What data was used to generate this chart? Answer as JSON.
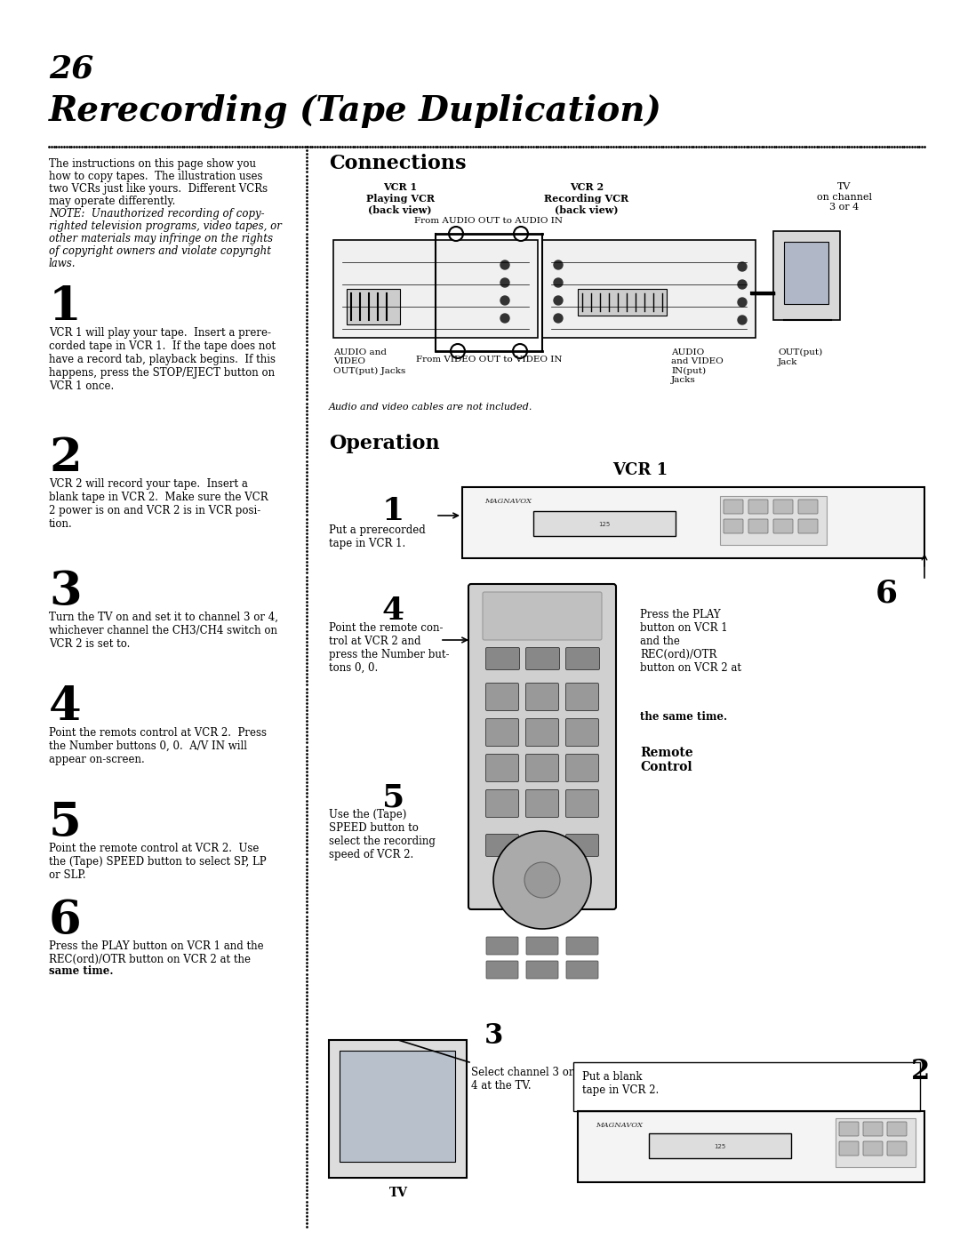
{
  "bg_color": "#ffffff",
  "page_number": "26",
  "title": "Rerecording (Tape Duplication)",
  "intro_text_line1": "The instructions on this page show you",
  "intro_text_line2": "how to copy tapes.  The illustration uses",
  "intro_text_line3": "two VCRs just like yours.  Different VCRs",
  "intro_text_line4": "may operate differently.",
  "intro_note1": "NOTE:  Unauthorized recording of copy-",
  "intro_note2": "righted television programs, video tapes, or",
  "intro_note3": "other materials may infringe on the rights",
  "intro_note4": "of copyright owners and violate copyright",
  "intro_note5": "laws.",
  "step1_num": "1",
  "step1_text": "VCR 1 will play your tape.  Insert a prere-\ncorded tape in VCR 1.  If the tape does not\nhave a record tab, playback begins.  If this\nhappens, press the STOP/EJECT button on\nVCR 1 once.",
  "step2_num": "2",
  "step2_text": "VCR 2 will record your tape.  Insert a\nblank tape in VCR 2.  Make sure the VCR\n2 power is on and VCR 2 is in VCR posi-\ntion.",
  "step3_num": "3",
  "step3_text": "Turn the TV on and set it to channel 3 or 4,\nwhichever channel the CH3/CH4 switch on\nVCR 2 is set to.",
  "step4_num": "4",
  "step4_text": "Point the remotѕ control at VCR 2.  Press\nthe Number buttons 0, 0.  A/V IN will\nappear on-screen.",
  "step5_num": "5",
  "step5_text": "Point the remote control at VCR 2.  Use\nthe (Tape) SPEED button to select SP, LP\nor SLP.",
  "step6_num": "6",
  "step6_text": "Press the PLAY button on VCR 1 and the\nREC(ord)/OTR button on VCR 2 at the",
  "step6_bold": "same time.",
  "connections_title": "Connections",
  "conn_vcr1_label": "VCR 1\nPlaying VCR\n(back view)",
  "conn_vcr2_label": "VCR 2\nRecording VCR\n(back view)",
  "conn_tv_label": "TV\non channel\n3 or 4",
  "conn_audio_label": "From AUDIO OUT to AUDIO IN",
  "conn_video_label": "From VIDEO OUT to VIDEO IN",
  "conn_audio_out": "AUDIO and\nVIDEO\nOUT(put) Jacks",
  "conn_audio_in": "AUDIO\nand VIDEO\nIN(put)\nJacks",
  "conn_out_jack": "OUT(put)\nJack",
  "conn_cable_note": "Audio and video cables are not included.",
  "operation_title": "Operation",
  "op_vcr1_label": "VCR 1",
  "op_step1_num": "1",
  "op_step1_text": "Put a prerecorded\ntape in VCR 1.",
  "op_step4_num": "4",
  "op_step4_text": "Point the remote con-\ntrol at VCR 2 and\npress the Number but-\ntons 0, 0.",
  "op_step5_num": "5",
  "op_step5_text": "Use the (Tape)\nSPEED button to\nselect the recording\nspeed of VCR 2.",
  "op_step6_num": "6",
  "op_step6_text": "Press the PLAY\nbutton on VCR 1\nand the\nREC(ord)/OTR\nbutton on VCR 2 at",
  "op_step6_bold": "the same time.",
  "op_remote_label": "Remote\nControl",
  "op_step3_num": "3",
  "op_step3_text": "Select channel 3 or\n4 at the TV.",
  "op_step2_num": "2",
  "op_step2_text": "Put a blank\ntape in VCR 2.",
  "op_tv_label": "TV"
}
